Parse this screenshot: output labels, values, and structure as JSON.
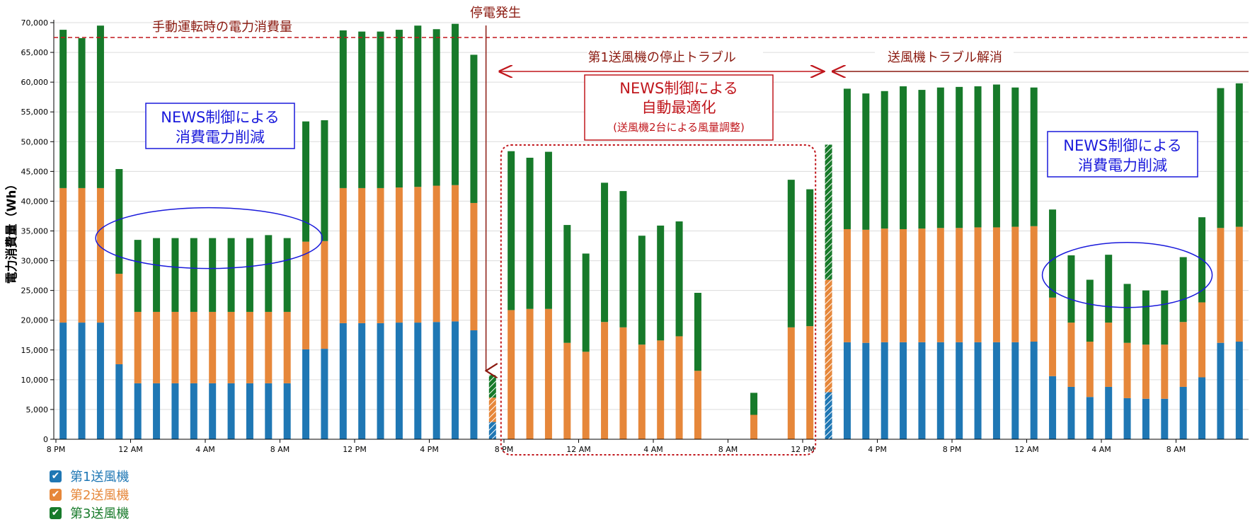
{
  "chart_data": {
    "type": "bar",
    "stacked": true,
    "ylabel": "電力消費量（Wh）",
    "ylim": [
      0,
      70000
    ],
    "yticks": [
      "0",
      "5,000",
      "10,000",
      "15,000",
      "20,000",
      "25,000",
      "30,000",
      "35,000",
      "40,000",
      "45,000",
      "50,000",
      "55,000",
      "60,000",
      "65,000",
      "70,000"
    ],
    "xticks": [
      {
        "index": 0,
        "label": "8 PM"
      },
      {
        "index": 4,
        "label": "12 AM"
      },
      {
        "index": 8,
        "label": "4 AM"
      },
      {
        "index": 12,
        "label": "8 AM"
      },
      {
        "index": 16,
        "label": "12 PM"
      },
      {
        "index": 20,
        "label": "4 PM"
      },
      {
        "index": 24,
        "label": "8 PM"
      },
      {
        "index": 28,
        "label": "12 AM"
      },
      {
        "index": 32,
        "label": "4 AM"
      },
      {
        "index": 36,
        "label": "8 AM"
      },
      {
        "index": 40,
        "label": "12 PM"
      },
      {
        "index": 44,
        "label": "4 PM"
      },
      {
        "index": 48,
        "label": "8 PM"
      },
      {
        "index": 52,
        "label": "12 AM"
      },
      {
        "index": 56,
        "label": "4 AM"
      },
      {
        "index": 60,
        "label": "8 AM"
      }
    ],
    "grid": true,
    "legend_position": "bottom-left",
    "colors": {
      "s1": "#1f77b4",
      "s2": "#e6873a",
      "s3": "#177a2a"
    },
    "hatched_bars": [
      23,
      35,
      38,
      41
    ],
    "series": [
      {
        "name": "第1送風機",
        "values": [
          19600,
          19600,
          19600,
          12600,
          9400,
          9400,
          9400,
          9400,
          9400,
          9400,
          9400,
          9400,
          9400,
          15100,
          15200,
          19500,
          19500,
          19500,
          19600,
          19600,
          19700,
          19800,
          18300,
          2900,
          0,
          0,
          0,
          0,
          0,
          0,
          0,
          0,
          0,
          0,
          0,
          0,
          0,
          0,
          0,
          0,
          0,
          7900,
          16300,
          16200,
          16300,
          16300,
          16300,
          16300,
          16300,
          16300,
          16300,
          16300,
          16400,
          10600,
          8800,
          7100,
          8800,
          6900,
          6800,
          6800,
          8800,
          10400,
          16200,
          16400
        ]
      },
      {
        "name": "第2送風機",
        "values": [
          22600,
          22600,
          22600,
          15200,
          12000,
          12000,
          12000,
          12000,
          12000,
          12000,
          12000,
          12000,
          12000,
          18100,
          18100,
          22700,
          22700,
          22700,
          22700,
          22800,
          22900,
          22900,
          21400,
          4100,
          21700,
          21900,
          21900,
          16200,
          14700,
          19700,
          18800,
          15900,
          16600,
          17300,
          11500,
          0,
          0,
          4100,
          0,
          18800,
          19000,
          18900,
          19000,
          19000,
          19100,
          19000,
          19100,
          19200,
          19200,
          19300,
          19300,
          19400,
          19400,
          13200,
          10800,
          9300,
          10800,
          9300,
          9100,
          9100,
          10900,
          12600,
          19300,
          19300
        ]
      },
      {
        "name": "第3送風機",
        "values": [
          26600,
          25200,
          27300,
          17600,
          12100,
          12400,
          12400,
          12400,
          12400,
          12400,
          12400,
          12900,
          12400,
          20200,
          20300,
          26500,
          26300,
          26300,
          26500,
          27100,
          26300,
          27100,
          24900,
          3800,
          26700,
          25400,
          26400,
          19800,
          16500,
          23400,
          22900,
          18300,
          19300,
          19300,
          13100,
          0,
          0,
          3700,
          0,
          24800,
          23000,
          22700,
          23600,
          22900,
          23100,
          24000,
          23300,
          23600,
          23700,
          23700,
          24000,
          23400,
          23300,
          14800,
          11300,
          10400,
          11400,
          9900,
          9100,
          9100,
          10900,
          14300,
          23500,
          24100
        ]
      }
    ],
    "annotations": {
      "manual_line_label": "手動運転時の電力消費量",
      "manual_line_value": 67500,
      "outage_label": "停電発生",
      "trouble_label": "第1送風機の停止トラブル",
      "resolved_label": "送風機トラブル解消",
      "box1_line1": "NEWS制御による",
      "box1_line2": "消費電力削減",
      "box2_line1": "NEWS制御による",
      "box2_line2": "自動最適化",
      "box2_line3": "(送風機2台による風量調整)",
      "box3_line1": "NEWS制御による",
      "box3_line2": "消費電力削減"
    }
  },
  "legend": [
    {
      "label": "第1送風機",
      "color": "#1f77b4",
      "check": "✔"
    },
    {
      "label": "第2送風機",
      "color": "#e6873a",
      "check": "✔"
    },
    {
      "label": "第3送風機",
      "color": "#177a2a",
      "check": "✔"
    }
  ]
}
